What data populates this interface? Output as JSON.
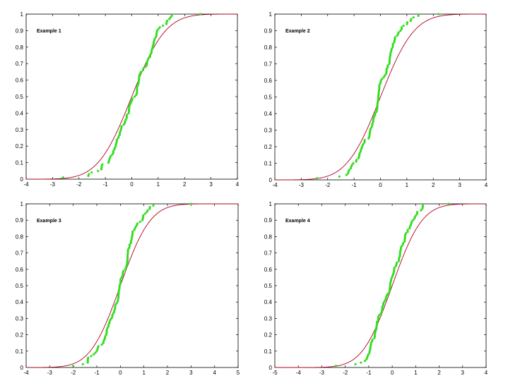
{
  "colors": {
    "fit_line": "#b0001e",
    "samples": "#33dd22",
    "axes": "#000000"
  },
  "chart_data": [
    {
      "type": "line",
      "annotation": "Example 1",
      "xlim": [
        -4,
        4
      ],
      "ylim": [
        0,
        1
      ],
      "xticks": [
        -4,
        -3,
        -2,
        -1,
        0,
        1,
        2,
        3,
        4
      ],
      "yticks": [
        0,
        0.1,
        0.2,
        0.3,
        0.4,
        0.5,
        0.6,
        0.7,
        0.8,
        0.9,
        1
      ],
      "grid": false,
      "fit": {
        "kind": "normal-cdf",
        "mean": 0,
        "sd": 1
      },
      "samples": {
        "n": 100,
        "min": -2.6,
        "max": 2.6,
        "seed": 11
      }
    },
    {
      "type": "line",
      "annotation": "Example 2",
      "xlim": [
        -4,
        4
      ],
      "ylim": [
        0,
        1
      ],
      "xticks": [
        -4,
        -3,
        -2,
        -1,
        0,
        1,
        2,
        3,
        4
      ],
      "yticks": [
        0,
        0.1,
        0.2,
        0.3,
        0.4,
        0.5,
        0.6,
        0.7,
        0.8,
        0.9,
        1
      ],
      "grid": false,
      "fit": {
        "kind": "normal-cdf",
        "mean": 0,
        "sd": 1
      },
      "samples": {
        "n": 100,
        "min": -2.4,
        "max": 2.2,
        "seed": 23
      }
    },
    {
      "type": "line",
      "annotation": "Example 3",
      "xlim": [
        -4,
        5
      ],
      "ylim": [
        0,
        1
      ],
      "xticks": [
        -4,
        -3,
        -2,
        -1,
        0,
        1,
        2,
        3,
        4,
        5
      ],
      "yticks": [
        0,
        0.1,
        0.2,
        0.3,
        0.4,
        0.5,
        0.6,
        0.7,
        0.8,
        0.9,
        1
      ],
      "grid": false,
      "fit": {
        "kind": "normal-cdf",
        "mean": 0,
        "sd": 1
      },
      "samples": {
        "n": 100,
        "min": -2.0,
        "max": 3.0,
        "seed": 37
      }
    },
    {
      "type": "line",
      "annotation": "Example 4",
      "xlim": [
        -5,
        4
      ],
      "ylim": [
        0,
        1
      ],
      "xticks": [
        -5,
        -4,
        -3,
        -2,
        -1,
        0,
        1,
        2,
        3,
        4
      ],
      "yticks": [
        0,
        0.1,
        0.2,
        0.3,
        0.4,
        0.5,
        0.6,
        0.7,
        0.8,
        0.9,
        1
      ],
      "grid": false,
      "fit": {
        "kind": "normal-cdf",
        "mean": 0,
        "sd": 1
      },
      "samples": {
        "n": 100,
        "min": -2.4,
        "max": 2.4,
        "seed": 53
      }
    }
  ]
}
